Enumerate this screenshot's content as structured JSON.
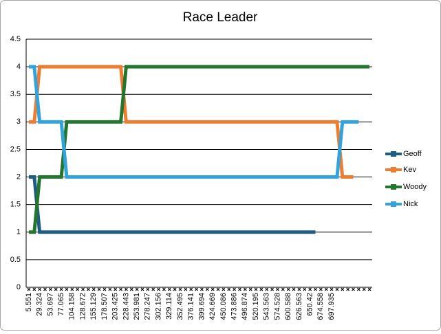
{
  "chart_data": {
    "type": "line",
    "title": "Race Leader",
    "categories": [
      "5.551",
      null,
      "29.324",
      null,
      "53.697",
      null,
      "77.065",
      null,
      "104.158",
      null,
      "128.672",
      null,
      "155.129",
      null,
      "178.507",
      null,
      "203.425",
      null,
      "228.443",
      null,
      "253.981",
      null,
      "278.247",
      null,
      "302.156",
      null,
      "329.114",
      null,
      "352.495",
      null,
      "376.141",
      null,
      "399.694",
      null,
      "424.669",
      null,
      "450.086",
      null,
      "473.886",
      null,
      "496.874",
      null,
      "520.195",
      null,
      "543.563",
      null,
      "574.528",
      null,
      "600.588",
      null,
      "626.563",
      null,
      "650.42",
      null,
      "674.558",
      null,
      "697.935",
      null,
      null,
      null,
      null,
      null,
      null,
      null
    ],
    "series": [
      {
        "name": "Geoff",
        "color": "#1f5c84",
        "values": [
          2,
          2,
          1,
          1,
          1,
          1,
          1,
          1,
          1,
          1,
          1,
          1,
          1,
          1,
          1,
          1,
          1,
          1,
          1,
          1,
          1,
          1,
          1,
          1,
          1,
          1,
          1,
          1,
          1,
          1,
          1,
          1,
          1,
          1,
          1,
          1,
          1,
          1,
          1,
          1,
          1,
          1,
          1,
          1,
          1,
          1,
          1,
          1,
          1,
          1,
          1,
          1,
          1,
          1,
          null,
          null,
          null,
          null,
          null,
          null,
          null,
          null,
          null,
          null
        ]
      },
      {
        "name": "Kev",
        "color": "#ed7d31",
        "values": [
          3,
          3,
          4,
          4,
          4,
          4,
          4,
          4,
          4,
          4,
          4,
          4,
          4,
          4,
          4,
          4,
          4,
          4,
          3,
          3,
          3,
          3,
          3,
          3,
          3,
          3,
          3,
          3,
          3,
          3,
          3,
          3,
          3,
          3,
          3,
          3,
          3,
          3,
          3,
          3,
          3,
          3,
          3,
          3,
          3,
          3,
          3,
          3,
          3,
          3,
          3,
          3,
          3,
          3,
          3,
          3,
          3,
          3,
          2,
          2,
          2,
          null,
          null,
          null
        ]
      },
      {
        "name": "Woody",
        "color": "#23762e",
        "values": [
          1,
          1,
          2,
          2,
          2,
          2,
          2,
          3,
          3,
          3,
          3,
          3,
          3,
          3,
          3,
          3,
          3,
          3,
          4,
          4,
          4,
          4,
          4,
          4,
          4,
          4,
          4,
          4,
          4,
          4,
          4,
          4,
          4,
          4,
          4,
          4,
          4,
          4,
          4,
          4,
          4,
          4,
          4,
          4,
          4,
          4,
          4,
          4,
          4,
          4,
          4,
          4,
          4,
          4,
          4,
          4,
          4,
          4,
          4,
          4,
          4,
          4,
          4,
          4
        ]
      },
      {
        "name": "Nick",
        "color": "#33a3dc",
        "values": [
          4,
          4,
          3,
          3,
          3,
          3,
          3,
          2,
          2,
          2,
          2,
          2,
          2,
          2,
          2,
          2,
          2,
          2,
          2,
          2,
          2,
          2,
          2,
          2,
          2,
          2,
          2,
          2,
          2,
          2,
          2,
          2,
          2,
          2,
          2,
          2,
          2,
          2,
          2,
          2,
          2,
          2,
          2,
          2,
          2,
          2,
          2,
          2,
          2,
          2,
          2,
          2,
          2,
          2,
          2,
          2,
          2,
          2,
          3,
          3,
          3,
          3,
          null,
          null
        ]
      }
    ],
    "ylim": [
      0,
      4.5
    ],
    "yticks": [
      0,
      0.5,
      1,
      1.5,
      2,
      2.5,
      3,
      3.5,
      4,
      4.5
    ],
    "grid": true,
    "legend": "right"
  }
}
